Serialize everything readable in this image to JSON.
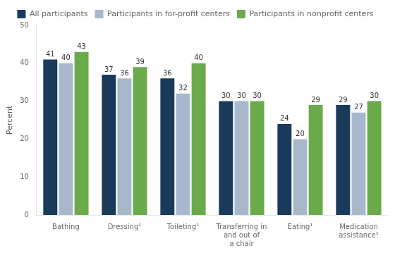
{
  "chart_data": {
    "type": "bar",
    "categories": [
      "Bathing",
      "Dressing¹",
      "Toileting¹",
      "Transferring in\nand out of\na chair",
      "Eating¹",
      "Medication\nassistance¹"
    ],
    "series": [
      {
        "name": "All participants",
        "color": "#1a3a5c",
        "values": [
          41,
          37,
          36,
          30,
          24,
          29
        ]
      },
      {
        "name": "Participants in for-profit centers",
        "color": "#a8b8cc",
        "values": [
          40,
          36,
          32,
          30,
          20,
          27
        ]
      },
      {
        "name": "Participants in nonprofit centers",
        "color": "#6aaa4a",
        "values": [
          43,
          39,
          40,
          30,
          29,
          30
        ]
      }
    ],
    "ylabel": "Percent",
    "ylim": [
      0,
      50
    ],
    "yticks": [
      0,
      10,
      20,
      30,
      40,
      50
    ],
    "grid": false,
    "legend": "top",
    "data_labels": true
  }
}
